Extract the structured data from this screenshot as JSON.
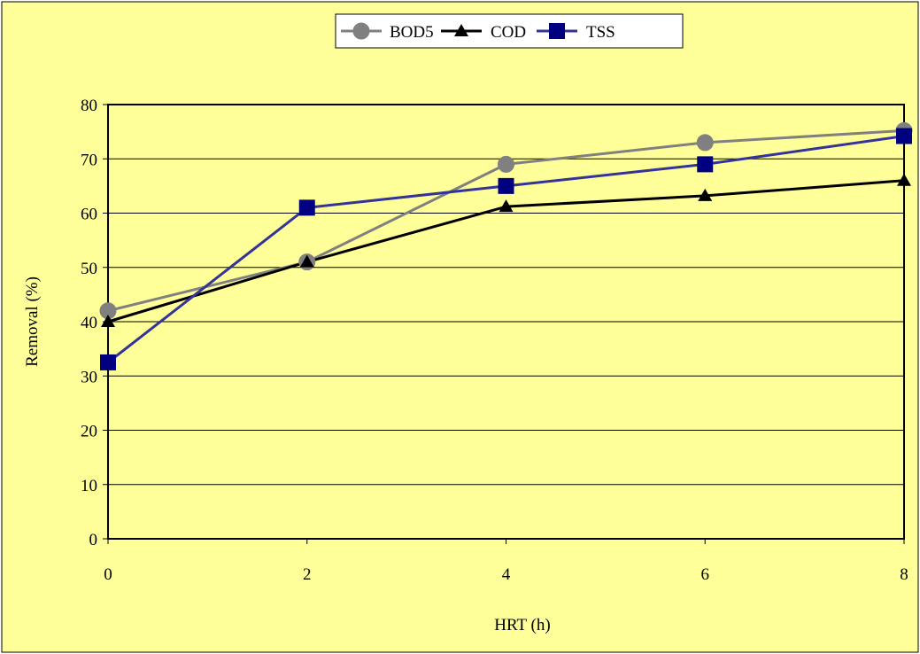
{
  "chart_data": {
    "type": "line",
    "title": "",
    "xlabel": "HRT (h)",
    "ylabel": "Removal (%)",
    "x": [
      0,
      2,
      4,
      6,
      8
    ],
    "x_ticks": [
      "0",
      "2",
      "4",
      "6",
      "8"
    ],
    "y_ticks": [
      "0",
      "10",
      "20",
      "30",
      "40",
      "50",
      "60",
      "70",
      "80"
    ],
    "xlim": [
      0,
      8
    ],
    "ylim": [
      0,
      80
    ],
    "grid": "horizontal",
    "legend_position": "top-center",
    "background_color": "#FFFF99",
    "series": [
      {
        "name": "BOD5",
        "values": [
          42,
          51,
          69,
          73,
          75.2
        ],
        "color": "#808080",
        "marker": "circle"
      },
      {
        "name": "COD",
        "values": [
          40,
          51,
          61.2,
          63.2,
          66
        ],
        "color": "#000000",
        "marker": "triangle"
      },
      {
        "name": "TSS",
        "values": [
          32.5,
          61,
          65,
          69,
          74.2
        ],
        "color": "#000080",
        "line_color": "#333399",
        "marker": "square"
      }
    ]
  }
}
